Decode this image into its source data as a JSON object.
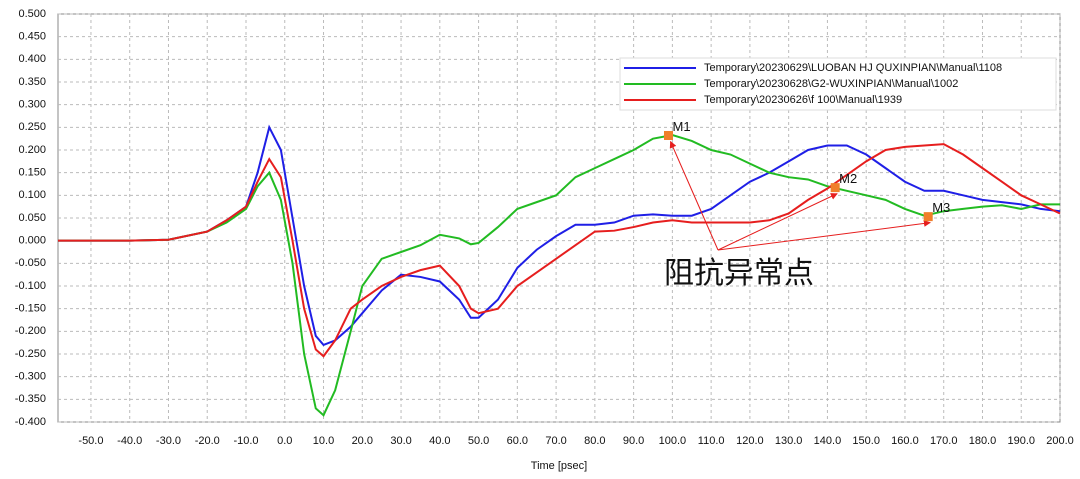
{
  "chart_data": {
    "type": "line",
    "x_label": "Time [psec]",
    "xlim": [
      -58.5,
      200
    ],
    "ylim": [
      -0.4,
      0.5
    ],
    "grid": true,
    "legend_position": "upper right",
    "xticks": [
      {
        "value": -50,
        "label": "-50.0"
      },
      {
        "value": -40,
        "label": "-40.0"
      },
      {
        "value": -30,
        "label": "-30.0"
      },
      {
        "value": -20,
        "label": "-20.0"
      },
      {
        "value": -10,
        "label": "-10.0"
      },
      {
        "value": 0,
        "label": "0.0"
      },
      {
        "value": 10,
        "label": "10.0"
      },
      {
        "value": 20,
        "label": "20.0"
      },
      {
        "value": 30,
        "label": "30.0"
      },
      {
        "value": 40,
        "label": "40.0"
      },
      {
        "value": 50,
        "label": "50.0"
      },
      {
        "value": 60,
        "label": "60.0"
      },
      {
        "value": 70,
        "label": "70.0"
      },
      {
        "value": 80,
        "label": "80.0"
      },
      {
        "value": 90,
        "label": "90.0"
      },
      {
        "value": 100,
        "label": "100.0"
      },
      {
        "value": 110,
        "label": "110.0"
      },
      {
        "value": 120,
        "label": "120.0"
      },
      {
        "value": 130,
        "label": "130.0"
      },
      {
        "value": 140,
        "label": "140.0"
      },
      {
        "value": 150,
        "label": "150.0"
      },
      {
        "value": 160,
        "label": "160.0"
      },
      {
        "value": 170,
        "label": "170.0"
      },
      {
        "value": 180,
        "label": "180.0"
      },
      {
        "value": 190,
        "label": "190.0"
      },
      {
        "value": 200,
        "label": "200.0"
      }
    ],
    "yticks": [
      {
        "value": 0.5,
        "label": "0.500"
      },
      {
        "value": 0.45,
        "label": "0.450"
      },
      {
        "value": 0.4,
        "label": "0.400"
      },
      {
        "value": 0.35,
        "label": "0.350"
      },
      {
        "value": 0.3,
        "label": "0.300"
      },
      {
        "value": 0.25,
        "label": "0.250"
      },
      {
        "value": 0.2,
        "label": "0.200"
      },
      {
        "value": 0.15,
        "label": "0.150"
      },
      {
        "value": 0.1,
        "label": "0.100"
      },
      {
        "value": 0.05,
        "label": "0.050"
      },
      {
        "value": 0,
        "label": "0.000"
      },
      {
        "value": -0.05,
        "label": "-0.050"
      },
      {
        "value": -0.1,
        "label": "-0.100"
      },
      {
        "value": -0.15,
        "label": "-0.150"
      },
      {
        "value": -0.2,
        "label": "-0.200"
      },
      {
        "value": -0.25,
        "label": "-0.250"
      },
      {
        "value": -0.3,
        "label": "-0.300"
      },
      {
        "value": -0.35,
        "label": "-0.350"
      },
      {
        "value": -0.4,
        "label": "-0.400"
      }
    ],
    "x": [
      -58.5,
      -50,
      -40,
      -30,
      -20,
      -15,
      -10,
      -7,
      -4,
      -1,
      2,
      5,
      8,
      10,
      13,
      17,
      20,
      25,
      30,
      35,
      40,
      45,
      48,
      50,
      55,
      60,
      65,
      70,
      75,
      80,
      85,
      90,
      95,
      100,
      105,
      110,
      115,
      120,
      125,
      130,
      135,
      140,
      145,
      150,
      155,
      160,
      165,
      170,
      175,
      180,
      185,
      190,
      195,
      200
    ],
    "series": [
      {
        "name": "Temporary\\20230629\\LUOBAN HJ QUXINPIAN\\Manual\\1108",
        "color": "#1f1fe6",
        "values": [
          0,
          0,
          0,
          0.002,
          0.02,
          0.045,
          0.075,
          0.15,
          0.25,
          0.2,
          0.05,
          -0.1,
          -0.21,
          -0.23,
          -0.22,
          -0.19,
          -0.16,
          -0.11,
          -0.075,
          -0.08,
          -0.09,
          -0.13,
          -0.17,
          -0.17,
          -0.13,
          -0.06,
          -0.02,
          0.01,
          0.035,
          0.035,
          0.04,
          0.055,
          0.058,
          0.055,
          0.055,
          0.07,
          0.1,
          0.13,
          0.15,
          0.175,
          0.2,
          0.21,
          0.21,
          0.19,
          0.16,
          0.13,
          0.11,
          0.11,
          0.1,
          0.09,
          0.085,
          0.08,
          0.07,
          0.065
        ]
      },
      {
        "name": "Temporary\\20230628\\G2-WUXINPIAN\\Manual\\1002",
        "color": "#22bb22",
        "values": [
          0,
          0,
          0,
          0.002,
          0.02,
          0.04,
          0.07,
          0.12,
          0.15,
          0.09,
          -0.05,
          -0.25,
          -0.37,
          -0.385,
          -0.33,
          -0.2,
          -0.1,
          -0.04,
          -0.025,
          -0.01,
          0.013,
          0.005,
          -0.008,
          -0.005,
          0.03,
          0.07,
          0.085,
          0.1,
          0.14,
          0.16,
          0.18,
          0.2,
          0.225,
          0.233,
          0.22,
          0.2,
          0.19,
          0.17,
          0.15,
          0.14,
          0.135,
          0.12,
          0.11,
          0.1,
          0.09,
          0.07,
          0.055,
          0.065,
          0.07,
          0.075,
          0.078,
          0.07,
          0.08,
          0.08
        ]
      },
      {
        "name": "Temporary\\20230626\\f   100\\Manual\\1939",
        "color": "#e61e1e",
        "values": [
          0,
          0,
          0,
          0.002,
          0.02,
          0.045,
          0.075,
          0.13,
          0.18,
          0.14,
          0,
          -0.15,
          -0.24,
          -0.255,
          -0.22,
          -0.15,
          -0.13,
          -0.1,
          -0.08,
          -0.065,
          -0.055,
          -0.1,
          -0.15,
          -0.16,
          -0.15,
          -0.1,
          -0.07,
          -0.04,
          -0.01,
          0.02,
          0.022,
          0.03,
          0.04,
          0.045,
          0.04,
          0.04,
          0.04,
          0.04,
          0.045,
          0.06,
          0.09,
          0.115,
          0.145,
          0.175,
          0.2,
          0.207,
          0.21,
          0.213,
          0.19,
          0.16,
          0.13,
          0.1,
          0.08,
          0.06
        ]
      }
    ],
    "marker_color": "#f07f2a",
    "markers": [
      {
        "label": "M1",
        "x": 99,
        "y": 0.232
      },
      {
        "label": "M2",
        "x": 142,
        "y": 0.117
      },
      {
        "label": "M3",
        "x": 166,
        "y": 0.053
      }
    ],
    "annotation": {
      "text": "阻抗异常点",
      "color": "#e61e1e"
    }
  }
}
